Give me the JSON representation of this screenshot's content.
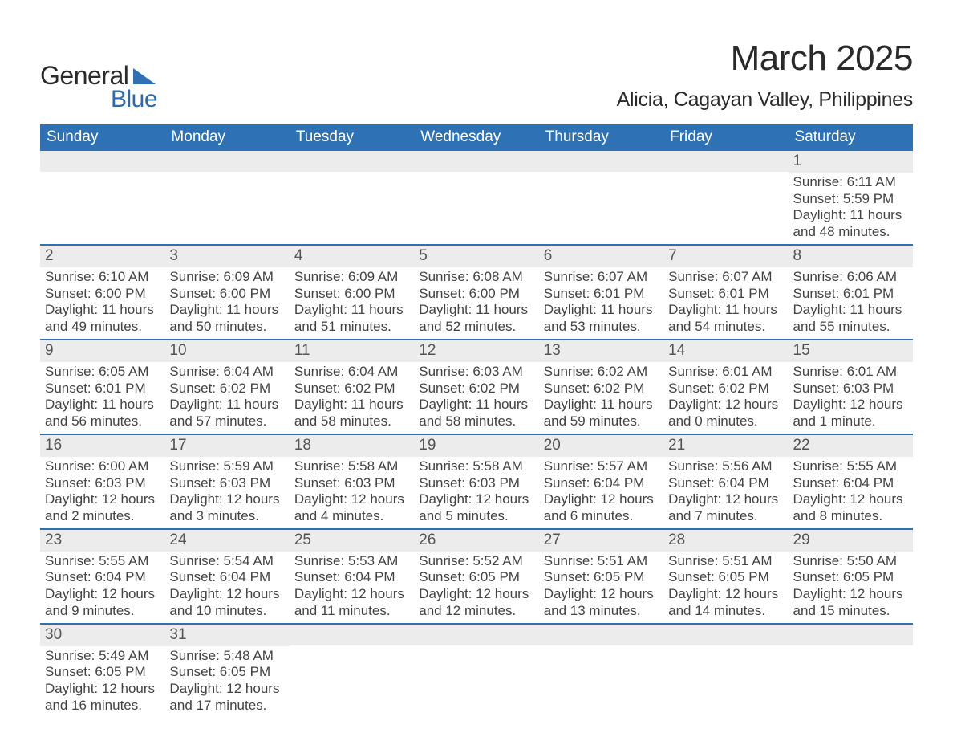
{
  "logo": {
    "word1": "General",
    "word2": "Blue",
    "tri_color": "#2f71b5"
  },
  "title": "March 2025",
  "location": "Alicia, Cagayan Valley, Philippines",
  "colors": {
    "header_bg": "#2f71b5",
    "header_fg": "#ffffff",
    "daynum_bg": "#ececec",
    "row_divider": "#2f71b5",
    "body_text": "#444444"
  },
  "day_headers": [
    "Sunday",
    "Monday",
    "Tuesday",
    "Wednesday",
    "Thursday",
    "Friday",
    "Saturday"
  ],
  "weeks": [
    [
      null,
      null,
      null,
      null,
      null,
      null,
      {
        "n": "1",
        "sunrise": "Sunrise: 6:11 AM",
        "sunset": "Sunset: 5:59 PM",
        "dl1": "Daylight: 11 hours",
        "dl2": "and 48 minutes."
      }
    ],
    [
      {
        "n": "2",
        "sunrise": "Sunrise: 6:10 AM",
        "sunset": "Sunset: 6:00 PM",
        "dl1": "Daylight: 11 hours",
        "dl2": "and 49 minutes."
      },
      {
        "n": "3",
        "sunrise": "Sunrise: 6:09 AM",
        "sunset": "Sunset: 6:00 PM",
        "dl1": "Daylight: 11 hours",
        "dl2": "and 50 minutes."
      },
      {
        "n": "4",
        "sunrise": "Sunrise: 6:09 AM",
        "sunset": "Sunset: 6:00 PM",
        "dl1": "Daylight: 11 hours",
        "dl2": "and 51 minutes."
      },
      {
        "n": "5",
        "sunrise": "Sunrise: 6:08 AM",
        "sunset": "Sunset: 6:00 PM",
        "dl1": "Daylight: 11 hours",
        "dl2": "and 52 minutes."
      },
      {
        "n": "6",
        "sunrise": "Sunrise: 6:07 AM",
        "sunset": "Sunset: 6:01 PM",
        "dl1": "Daylight: 11 hours",
        "dl2": "and 53 minutes."
      },
      {
        "n": "7",
        "sunrise": "Sunrise: 6:07 AM",
        "sunset": "Sunset: 6:01 PM",
        "dl1": "Daylight: 11 hours",
        "dl2": "and 54 minutes."
      },
      {
        "n": "8",
        "sunrise": "Sunrise: 6:06 AM",
        "sunset": "Sunset: 6:01 PM",
        "dl1": "Daylight: 11 hours",
        "dl2": "and 55 minutes."
      }
    ],
    [
      {
        "n": "9",
        "sunrise": "Sunrise: 6:05 AM",
        "sunset": "Sunset: 6:01 PM",
        "dl1": "Daylight: 11 hours",
        "dl2": "and 56 minutes."
      },
      {
        "n": "10",
        "sunrise": "Sunrise: 6:04 AM",
        "sunset": "Sunset: 6:02 PM",
        "dl1": "Daylight: 11 hours",
        "dl2": "and 57 minutes."
      },
      {
        "n": "11",
        "sunrise": "Sunrise: 6:04 AM",
        "sunset": "Sunset: 6:02 PM",
        "dl1": "Daylight: 11 hours",
        "dl2": "and 58 minutes."
      },
      {
        "n": "12",
        "sunrise": "Sunrise: 6:03 AM",
        "sunset": "Sunset: 6:02 PM",
        "dl1": "Daylight: 11 hours",
        "dl2": "and 58 minutes."
      },
      {
        "n": "13",
        "sunrise": "Sunrise: 6:02 AM",
        "sunset": "Sunset: 6:02 PM",
        "dl1": "Daylight: 11 hours",
        "dl2": "and 59 minutes."
      },
      {
        "n": "14",
        "sunrise": "Sunrise: 6:01 AM",
        "sunset": "Sunset: 6:02 PM",
        "dl1": "Daylight: 12 hours",
        "dl2": "and 0 minutes."
      },
      {
        "n": "15",
        "sunrise": "Sunrise: 6:01 AM",
        "sunset": "Sunset: 6:03 PM",
        "dl1": "Daylight: 12 hours",
        "dl2": "and 1 minute."
      }
    ],
    [
      {
        "n": "16",
        "sunrise": "Sunrise: 6:00 AM",
        "sunset": "Sunset: 6:03 PM",
        "dl1": "Daylight: 12 hours",
        "dl2": "and 2 minutes."
      },
      {
        "n": "17",
        "sunrise": "Sunrise: 5:59 AM",
        "sunset": "Sunset: 6:03 PM",
        "dl1": "Daylight: 12 hours",
        "dl2": "and 3 minutes."
      },
      {
        "n": "18",
        "sunrise": "Sunrise: 5:58 AM",
        "sunset": "Sunset: 6:03 PM",
        "dl1": "Daylight: 12 hours",
        "dl2": "and 4 minutes."
      },
      {
        "n": "19",
        "sunrise": "Sunrise: 5:58 AM",
        "sunset": "Sunset: 6:03 PM",
        "dl1": "Daylight: 12 hours",
        "dl2": "and 5 minutes."
      },
      {
        "n": "20",
        "sunrise": "Sunrise: 5:57 AM",
        "sunset": "Sunset: 6:04 PM",
        "dl1": "Daylight: 12 hours",
        "dl2": "and 6 minutes."
      },
      {
        "n": "21",
        "sunrise": "Sunrise: 5:56 AM",
        "sunset": "Sunset: 6:04 PM",
        "dl1": "Daylight: 12 hours",
        "dl2": "and 7 minutes."
      },
      {
        "n": "22",
        "sunrise": "Sunrise: 5:55 AM",
        "sunset": "Sunset: 6:04 PM",
        "dl1": "Daylight: 12 hours",
        "dl2": "and 8 minutes."
      }
    ],
    [
      {
        "n": "23",
        "sunrise": "Sunrise: 5:55 AM",
        "sunset": "Sunset: 6:04 PM",
        "dl1": "Daylight: 12 hours",
        "dl2": "and 9 minutes."
      },
      {
        "n": "24",
        "sunrise": "Sunrise: 5:54 AM",
        "sunset": "Sunset: 6:04 PM",
        "dl1": "Daylight: 12 hours",
        "dl2": "and 10 minutes."
      },
      {
        "n": "25",
        "sunrise": "Sunrise: 5:53 AM",
        "sunset": "Sunset: 6:04 PM",
        "dl1": "Daylight: 12 hours",
        "dl2": "and 11 minutes."
      },
      {
        "n": "26",
        "sunrise": "Sunrise: 5:52 AM",
        "sunset": "Sunset: 6:05 PM",
        "dl1": "Daylight: 12 hours",
        "dl2": "and 12 minutes."
      },
      {
        "n": "27",
        "sunrise": "Sunrise: 5:51 AM",
        "sunset": "Sunset: 6:05 PM",
        "dl1": "Daylight: 12 hours",
        "dl2": "and 13 minutes."
      },
      {
        "n": "28",
        "sunrise": "Sunrise: 5:51 AM",
        "sunset": "Sunset: 6:05 PM",
        "dl1": "Daylight: 12 hours",
        "dl2": "and 14 minutes."
      },
      {
        "n": "29",
        "sunrise": "Sunrise: 5:50 AM",
        "sunset": "Sunset: 6:05 PM",
        "dl1": "Daylight: 12 hours",
        "dl2": "and 15 minutes."
      }
    ],
    [
      {
        "n": "30",
        "sunrise": "Sunrise: 5:49 AM",
        "sunset": "Sunset: 6:05 PM",
        "dl1": "Daylight: 12 hours",
        "dl2": "and 16 minutes."
      },
      {
        "n": "31",
        "sunrise": "Sunrise: 5:48 AM",
        "sunset": "Sunset: 6:05 PM",
        "dl1": "Daylight: 12 hours",
        "dl2": "and 17 minutes."
      },
      null,
      null,
      null,
      null,
      null
    ]
  ]
}
